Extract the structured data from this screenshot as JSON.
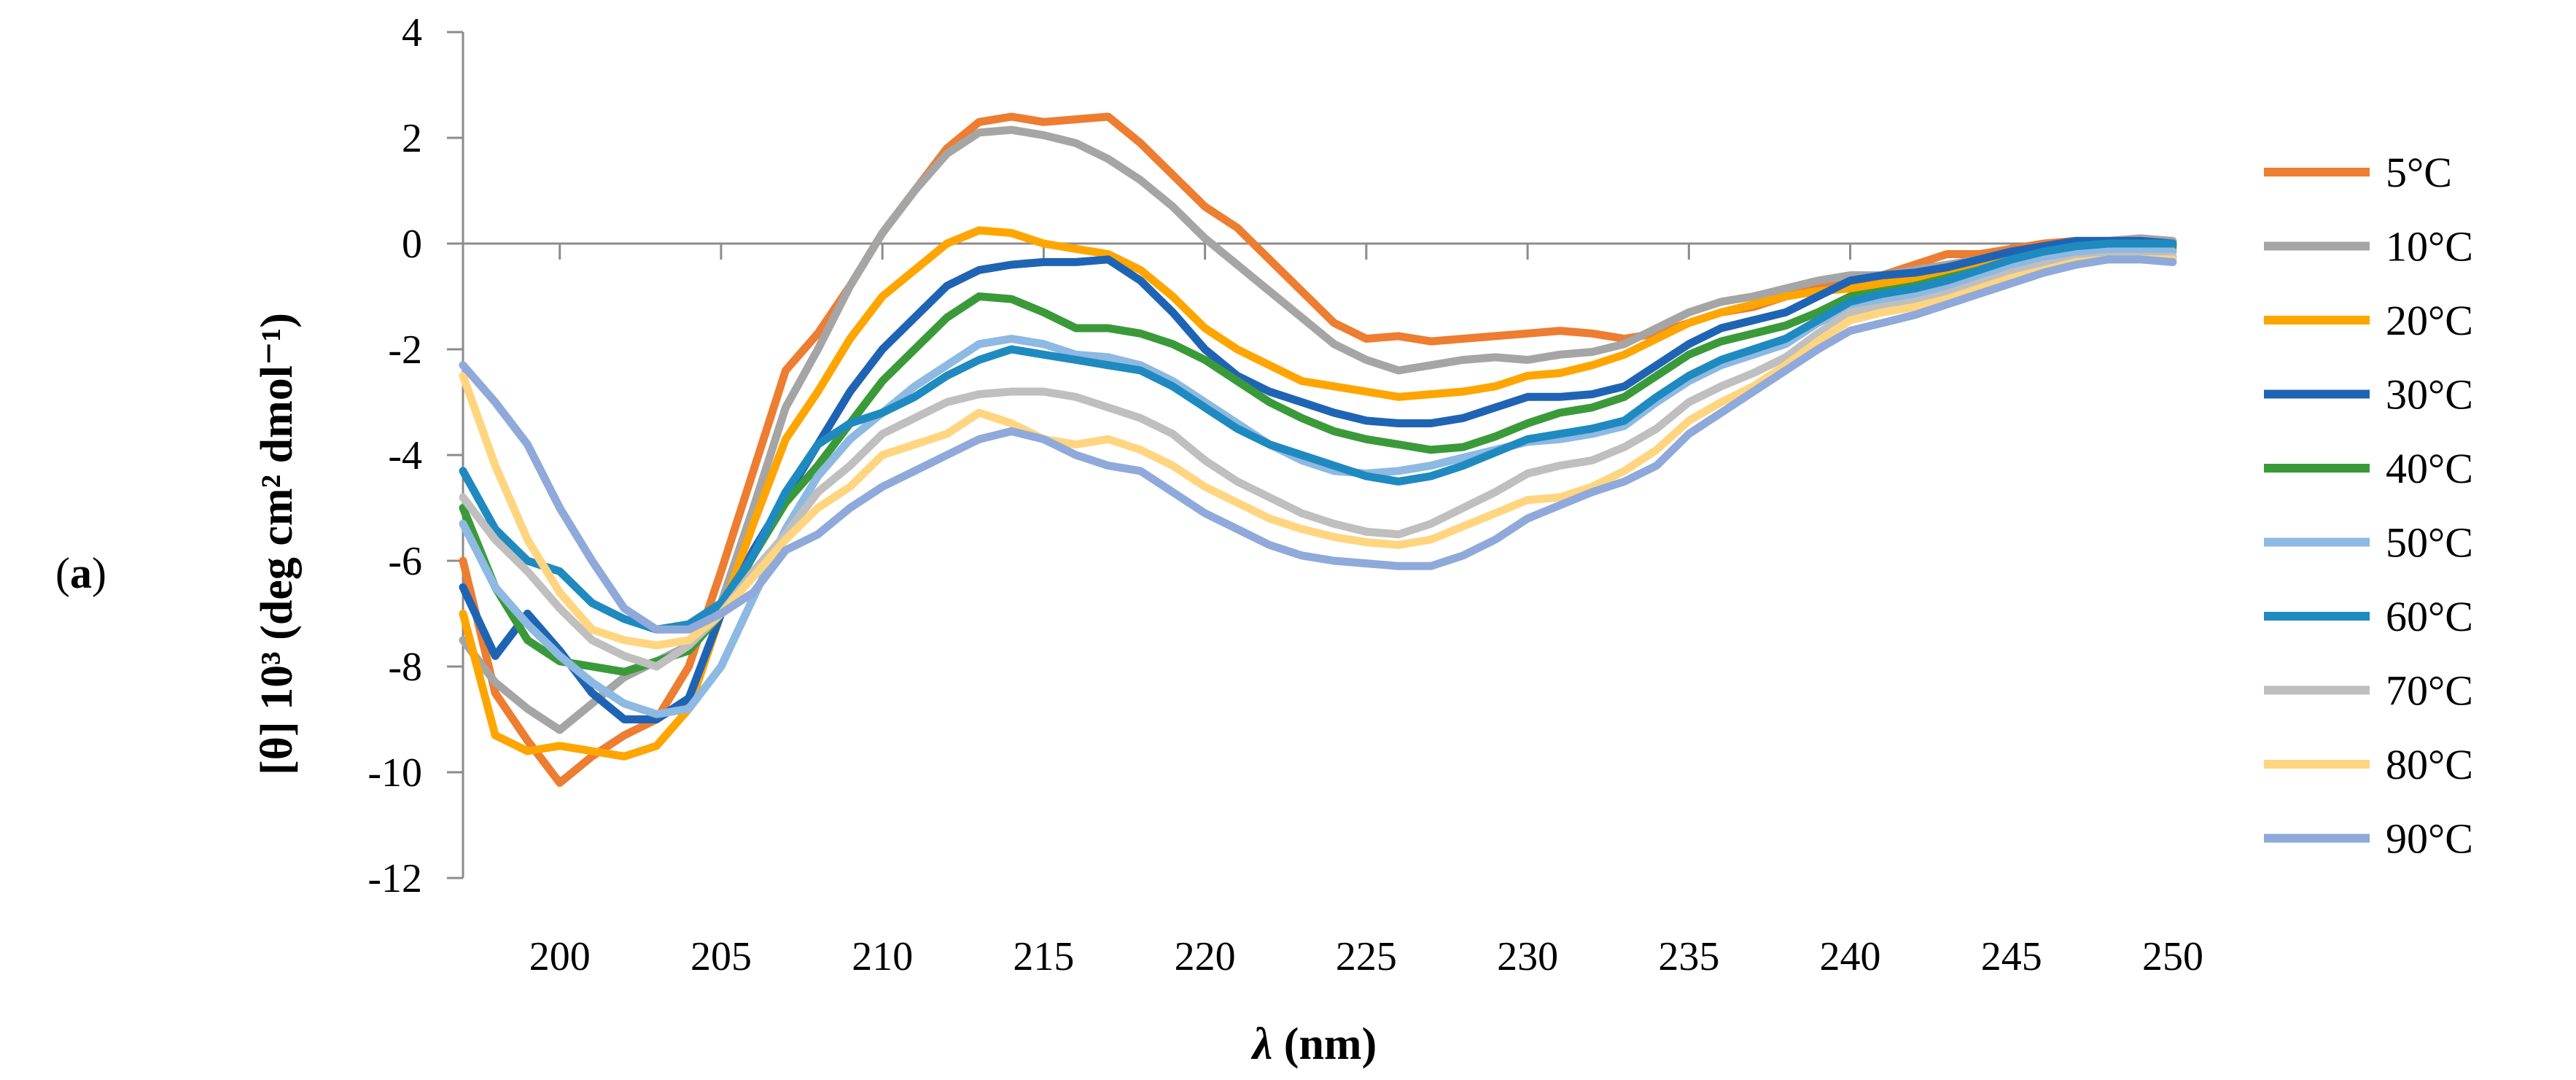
{
  "panel_label": {
    "open": "(",
    "letter": "a",
    "close": ")"
  },
  "chart_data": {
    "type": "line",
    "title": "",
    "xlabel": {
      "symbol": "λ",
      "unit": " (nm)"
    },
    "ylabel": "[θ] 10³ (deg cm² dmol⁻¹)",
    "xlim": [
      197,
      250
    ],
    "ylim": [
      -12,
      4
    ],
    "x_ticks": [
      200,
      205,
      210,
      215,
      220,
      225,
      230,
      235,
      240,
      245,
      250
    ],
    "y_ticks": [
      -12,
      -10,
      -8,
      -6,
      -4,
      -2,
      0,
      2,
      4
    ],
    "x": [
      197,
      198,
      199,
      200,
      201,
      202,
      203,
      204,
      205,
      206,
      207,
      208,
      209,
      210,
      211,
      212,
      213,
      214,
      215,
      216,
      217,
      218,
      219,
      220,
      221,
      222,
      223,
      224,
      225,
      226,
      227,
      228,
      229,
      230,
      231,
      232,
      233,
      234,
      235,
      236,
      237,
      238,
      239,
      240,
      241,
      242,
      243,
      244,
      245,
      246,
      247,
      248,
      249,
      250
    ],
    "series": [
      {
        "name": "5°C",
        "color": "#ED7D31",
        "values": [
          -6.0,
          -8.5,
          -9.4,
          -10.2,
          -9.7,
          -9.3,
          -9.0,
          -8.0,
          -6.2,
          -4.3,
          -2.4,
          -1.7,
          -0.8,
          0.2,
          1.0,
          1.8,
          2.3,
          2.4,
          2.3,
          2.35,
          2.4,
          1.9,
          1.3,
          0.7,
          0.3,
          -0.3,
          -0.9,
          -1.5,
          -1.8,
          -1.75,
          -1.85,
          -1.8,
          -1.75,
          -1.7,
          -1.65,
          -1.7,
          -1.8,
          -1.7,
          -1.5,
          -1.3,
          -1.2,
          -1.0,
          -0.85,
          -0.75,
          -0.6,
          -0.4,
          -0.2,
          -0.2,
          -0.1,
          0.0,
          0.05,
          0.05,
          0.05,
          0.0
        ]
      },
      {
        "name": "10°C",
        "color": "#A5A5A5",
        "values": [
          -7.5,
          -8.3,
          -8.8,
          -9.2,
          -8.7,
          -8.2,
          -7.9,
          -7.6,
          -6.8,
          -5.0,
          -3.1,
          -2.0,
          -0.8,
          0.2,
          1.0,
          1.7,
          2.1,
          2.15,
          2.05,
          1.9,
          1.6,
          1.2,
          0.7,
          0.1,
          -0.4,
          -0.9,
          -1.4,
          -1.9,
          -2.2,
          -2.4,
          -2.3,
          -2.2,
          -2.15,
          -2.2,
          -2.1,
          -2.05,
          -1.9,
          -1.6,
          -1.3,
          -1.1,
          -1.0,
          -0.85,
          -0.7,
          -0.6,
          -0.6,
          -0.5,
          -0.4,
          -0.3,
          -0.2,
          -0.1,
          0.0,
          0.05,
          0.1,
          0.05
        ]
      },
      {
        "name": "20°C",
        "color": "#FFA500",
        "values": [
          -7.0,
          -9.3,
          -9.6,
          -9.5,
          -9.6,
          -9.7,
          -9.5,
          -8.8,
          -7.0,
          -5.3,
          -3.7,
          -2.8,
          -1.8,
          -1.0,
          -0.5,
          0.0,
          0.25,
          0.2,
          0.0,
          -0.1,
          -0.2,
          -0.5,
          -1.0,
          -1.6,
          -2.0,
          -2.3,
          -2.6,
          -2.7,
          -2.8,
          -2.9,
          -2.85,
          -2.8,
          -2.7,
          -2.5,
          -2.45,
          -2.3,
          -2.1,
          -1.8,
          -1.5,
          -1.3,
          -1.15,
          -1.0,
          -0.9,
          -0.85,
          -0.75,
          -0.65,
          -0.5,
          -0.4,
          -0.3,
          -0.25,
          -0.2,
          -0.15,
          -0.1,
          -0.1
        ]
      },
      {
        "name": "30°C",
        "color": "#1F64B4",
        "values": [
          -6.5,
          -7.8,
          -7.0,
          -7.7,
          -8.5,
          -9.0,
          -9.0,
          -8.6,
          -7.0,
          -5.8,
          -4.8,
          -3.8,
          -2.8,
          -2.0,
          -1.4,
          -0.8,
          -0.5,
          -0.4,
          -0.35,
          -0.35,
          -0.3,
          -0.7,
          -1.3,
          -2.0,
          -2.5,
          -2.8,
          -3.0,
          -3.2,
          -3.35,
          -3.4,
          -3.4,
          -3.3,
          -3.1,
          -2.9,
          -2.9,
          -2.85,
          -2.7,
          -2.3,
          -1.9,
          -1.6,
          -1.45,
          -1.3,
          -1.0,
          -0.7,
          -0.6,
          -0.55,
          -0.45,
          -0.3,
          -0.15,
          -0.05,
          0.05,
          0.05,
          0.05,
          0.0
        ]
      },
      {
        "name": "40°C",
        "color": "#3A9A3A",
        "values": [
          -5.0,
          -6.5,
          -7.5,
          -7.9,
          -8.0,
          -8.1,
          -7.9,
          -7.7,
          -7.0,
          -5.9,
          -4.9,
          -4.2,
          -3.4,
          -2.6,
          -2.0,
          -1.4,
          -1.0,
          -1.05,
          -1.3,
          -1.6,
          -1.6,
          -1.7,
          -1.9,
          -2.2,
          -2.6,
          -3.0,
          -3.3,
          -3.55,
          -3.7,
          -3.8,
          -3.9,
          -3.85,
          -3.65,
          -3.4,
          -3.2,
          -3.1,
          -2.9,
          -2.5,
          -2.1,
          -1.85,
          -1.7,
          -1.55,
          -1.3,
          -1.0,
          -0.9,
          -0.8,
          -0.65,
          -0.5,
          -0.35,
          -0.2,
          -0.1,
          -0.05,
          -0.05,
          -0.05
        ]
      },
      {
        "name": "50°C",
        "color": "#8DB9E2",
        "values": [
          -5.3,
          -6.5,
          -7.2,
          -7.8,
          -8.3,
          -8.7,
          -8.9,
          -8.8,
          -8.0,
          -6.7,
          -5.4,
          -4.4,
          -3.7,
          -3.2,
          -2.7,
          -2.3,
          -1.9,
          -1.8,
          -1.9,
          -2.1,
          -2.15,
          -2.3,
          -2.6,
          -3.0,
          -3.4,
          -3.8,
          -4.1,
          -4.3,
          -4.35,
          -4.3,
          -4.2,
          -4.05,
          -3.9,
          -3.75,
          -3.7,
          -3.6,
          -3.45,
          -3.0,
          -2.6,
          -2.3,
          -2.1,
          -1.9,
          -1.5,
          -1.2,
          -1.1,
          -1.0,
          -0.85,
          -0.6,
          -0.45,
          -0.3,
          -0.2,
          -0.15,
          -0.15,
          -0.15
        ]
      },
      {
        "name": "60°C",
        "color": "#1F8AC0",
        "values": [
          -4.3,
          -5.4,
          -6.0,
          -6.2,
          -6.8,
          -7.1,
          -7.3,
          -7.2,
          -6.8,
          -5.9,
          -4.7,
          -3.8,
          -3.4,
          -3.2,
          -2.9,
          -2.5,
          -2.2,
          -2.0,
          -2.1,
          -2.2,
          -2.3,
          -2.4,
          -2.7,
          -3.1,
          -3.5,
          -3.8,
          -4.0,
          -4.2,
          -4.4,
          -4.5,
          -4.4,
          -4.2,
          -3.95,
          -3.7,
          -3.6,
          -3.5,
          -3.35,
          -2.9,
          -2.5,
          -2.2,
          -2.0,
          -1.8,
          -1.45,
          -1.1,
          -0.95,
          -0.85,
          -0.7,
          -0.5,
          -0.3,
          -0.15,
          -0.05,
          0.0,
          0.0,
          0.0
        ]
      },
      {
        "name": "70°C",
        "color": "#BFBFBF",
        "values": [
          -4.8,
          -5.6,
          -6.2,
          -6.9,
          -7.5,
          -7.8,
          -8.0,
          -7.6,
          -7.0,
          -6.2,
          -5.5,
          -4.7,
          -4.2,
          -3.6,
          -3.3,
          -3.0,
          -2.85,
          -2.8,
          -2.8,
          -2.9,
          -3.1,
          -3.3,
          -3.6,
          -4.1,
          -4.5,
          -4.8,
          -5.1,
          -5.3,
          -5.45,
          -5.5,
          -5.3,
          -5.0,
          -4.7,
          -4.35,
          -4.2,
          -4.1,
          -3.85,
          -3.5,
          -3.0,
          -2.7,
          -2.45,
          -2.15,
          -1.7,
          -1.3,
          -1.2,
          -1.1,
          -0.95,
          -0.75,
          -0.55,
          -0.4,
          -0.3,
          -0.25,
          -0.25,
          -0.25
        ]
      },
      {
        "name": "80°C",
        "color": "#FFD580",
        "values": [
          -2.5,
          -4.2,
          -5.6,
          -6.6,
          -7.3,
          -7.5,
          -7.6,
          -7.5,
          -7.0,
          -6.3,
          -5.6,
          -5.0,
          -4.6,
          -4.0,
          -3.8,
          -3.6,
          -3.2,
          -3.4,
          -3.7,
          -3.8,
          -3.7,
          -3.9,
          -4.2,
          -4.6,
          -4.9,
          -5.2,
          -5.4,
          -5.55,
          -5.65,
          -5.7,
          -5.6,
          -5.35,
          -5.1,
          -4.85,
          -4.8,
          -4.6,
          -4.3,
          -3.9,
          -3.35,
          -3.0,
          -2.7,
          -2.3,
          -1.85,
          -1.45,
          -1.3,
          -1.2,
          -1.05,
          -0.85,
          -0.65,
          -0.5,
          -0.35,
          -0.3,
          -0.3,
          -0.3
        ]
      },
      {
        "name": "90°C",
        "color": "#8FA9DB",
        "values": [
          -2.3,
          -3.0,
          -3.8,
          -5.0,
          -6.0,
          -6.9,
          -7.3,
          -7.3,
          -7.0,
          -6.6,
          -5.8,
          -5.5,
          -5.0,
          -4.6,
          -4.3,
          -4.0,
          -3.7,
          -3.55,
          -3.7,
          -4.0,
          -4.2,
          -4.3,
          -4.7,
          -5.1,
          -5.4,
          -5.7,
          -5.9,
          -6.0,
          -6.05,
          -6.1,
          -6.1,
          -5.9,
          -5.6,
          -5.2,
          -4.95,
          -4.7,
          -4.5,
          -4.2,
          -3.6,
          -3.2,
          -2.8,
          -2.4,
          -2.0,
          -1.65,
          -1.5,
          -1.35,
          -1.15,
          -0.95,
          -0.75,
          -0.55,
          -0.4,
          -0.3,
          -0.3,
          -0.35
        ]
      }
    ],
    "legend_position": "right",
    "grid": false
  }
}
